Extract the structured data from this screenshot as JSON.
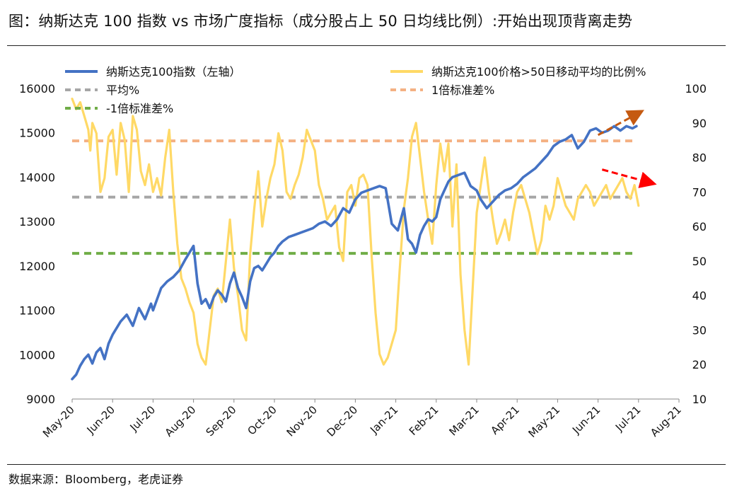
{
  "title": "图：纳斯达克 100 指数 vs  市场广度指标（成分股占上 50 日均线比例）:开始出现顶背离走势",
  "source": "数据来源：Bloomberg，老虎证券",
  "colors": {
    "ndx": "#4472C4",
    "breadth": "#FFD966",
    "mean": "#A6A6A6",
    "plus_std": "#F4B183",
    "minus_std": "#70AD47",
    "arrow_up": "#C55A11",
    "arrow_down": "#FF0000"
  },
  "chart_data": {
    "type": "line",
    "x_ticks": [
      "May-20",
      "Jun-20",
      "Jul-20",
      "Aug-20",
      "Sep-20",
      "Oct-20",
      "Nov-20",
      "Dec-20",
      "Jan-21",
      "Feb-21",
      "Mar-21",
      "Apr-21",
      "May-21",
      "Jun-21",
      "Jul-21",
      "Aug-21"
    ],
    "left_axis": {
      "ticks": [
        9000,
        10000,
        11000,
        12000,
        13000,
        14000,
        15000,
        16000
      ],
      "range": [
        9000,
        16000
      ]
    },
    "right_axis": {
      "ticks": [
        10,
        20,
        30,
        40,
        50,
        60,
        70,
        80,
        90,
        100
      ],
      "range": [
        10,
        100
      ]
    },
    "legend": [
      {
        "name": "纳斯达克100指数（左轴）",
        "key": "ndx"
      },
      {
        "name": "纳斯达克100价格>50日移动平均的比例%",
        "key": "breadth"
      },
      {
        "name": "平均%",
        "key": "mean"
      },
      {
        "name": "1倍标准差%",
        "key": "plus_std"
      },
      {
        "name": "-1倍标准差%",
        "key": "minus_std"
      }
    ],
    "reference_lines": {
      "mean": 68.5,
      "plus_std": 84.8,
      "minus_std": 52.2
    },
    "series": [
      {
        "name": "纳斯达克100指数（左轴）",
        "axis": "left",
        "x": [
          0,
          0.1,
          0.2,
          0.3,
          0.4,
          0.5,
          0.6,
          0.7,
          0.8,
          0.9,
          1.0,
          1.1,
          1.2,
          1.35,
          1.5,
          1.65,
          1.8,
          1.95,
          2.0,
          2.1,
          2.2,
          2.35,
          2.5,
          2.65,
          2.8,
          2.9,
          3.0,
          3.1,
          3.2,
          3.3,
          3.4,
          3.5,
          3.6,
          3.7,
          3.8,
          3.9,
          4.0,
          4.1,
          4.2,
          4.3,
          4.4,
          4.5,
          4.6,
          4.7,
          4.8,
          4.9,
          5.0,
          5.1,
          5.2,
          5.35,
          5.5,
          5.65,
          5.8,
          5.95,
          6.1,
          6.25,
          6.4,
          6.55,
          6.7,
          6.85,
          7.0,
          7.15,
          7.3,
          7.45,
          7.6,
          7.75,
          7.9,
          8.05,
          8.2,
          8.3,
          8.4,
          8.5,
          8.6,
          8.7,
          8.8,
          8.9,
          9.0,
          9.1,
          9.2,
          9.3,
          9.4,
          9.55,
          9.7,
          9.85,
          10.0,
          10.1,
          10.25,
          10.4,
          10.55,
          10.7,
          10.85,
          11.0,
          11.15,
          11.3,
          11.45,
          11.6,
          11.75,
          11.9,
          12.05,
          12.2,
          12.35,
          12.5,
          12.65,
          12.8,
          12.95,
          13.1,
          13.25,
          13.4,
          13.55,
          13.7,
          13.85,
          13.95
        ],
        "values": [
          9450,
          9550,
          9750,
          9900,
          10000,
          9800,
          10050,
          10150,
          9900,
          10250,
          10450,
          10600,
          10750,
          10900,
          10650,
          11050,
          10800,
          11150,
          11000,
          11250,
          11500,
          11650,
          11750,
          11900,
          12150,
          12300,
          12450,
          11600,
          11150,
          11250,
          11050,
          11300,
          11450,
          11350,
          11200,
          11600,
          11850,
          11500,
          11300,
          11050,
          11650,
          11950,
          12000,
          11900,
          12050,
          12200,
          12300,
          12450,
          12550,
          12650,
          12700,
          12750,
          12800,
          12850,
          12950,
          13000,
          12900,
          13050,
          13300,
          13200,
          13500,
          13650,
          13700,
          13750,
          13800,
          13750,
          12950,
          12800,
          13300,
          12600,
          12500,
          12300,
          12700,
          12900,
          13050,
          13000,
          13100,
          13500,
          13700,
          13900,
          14000,
          14050,
          14100,
          13800,
          13700,
          13500,
          13300,
          13450,
          13600,
          13700,
          13750,
          13850,
          14000,
          14100,
          14200,
          14350,
          14500,
          14700,
          14800,
          14850,
          14950,
          14650,
          14800,
          15050,
          15100,
          15000,
          15050,
          15150,
          15050,
          15150,
          15100,
          15150
        ],
        "values_note": ""
      },
      {
        "name": "纳斯达克100价格>50日移动平均的比例%",
        "axis": "right",
        "x": [
          0,
          0.1,
          0.2,
          0.3,
          0.4,
          0.45,
          0.5,
          0.6,
          0.7,
          0.8,
          0.9,
          1.0,
          1.1,
          1.2,
          1.3,
          1.4,
          1.5,
          1.6,
          1.7,
          1.8,
          1.9,
          2.0,
          2.1,
          2.2,
          2.3,
          2.4,
          2.5,
          2.6,
          2.7,
          2.8,
          2.9,
          3.0,
          3.1,
          3.2,
          3.3,
          3.4,
          3.5,
          3.6,
          3.7,
          3.8,
          3.9,
          4.0,
          4.1,
          4.2,
          4.3,
          4.4,
          4.5,
          4.6,
          4.7,
          4.8,
          4.9,
          5.0,
          5.1,
          5.2,
          5.3,
          5.4,
          5.5,
          5.6,
          5.7,
          5.8,
          5.9,
          6.0,
          6.1,
          6.2,
          6.3,
          6.4,
          6.5,
          6.6,
          6.7,
          6.8,
          6.9,
          7.0,
          7.1,
          7.2,
          7.3,
          7.4,
          7.5,
          7.6,
          7.7,
          7.8,
          7.9,
          8.0,
          8.1,
          8.2,
          8.3,
          8.4,
          8.5,
          8.6,
          8.7,
          8.8,
          8.9,
          9.0,
          9.1,
          9.2,
          9.3,
          9.4,
          9.5,
          9.6,
          9.7,
          9.8,
          9.9,
          10.0,
          10.1,
          10.2,
          10.3,
          10.4,
          10.5,
          10.6,
          10.7,
          10.8,
          10.9,
          11.0,
          11.1,
          11.2,
          11.3,
          11.4,
          11.5,
          11.6,
          11.7,
          11.8,
          11.9,
          12.0,
          12.1,
          12.2,
          12.3,
          12.4,
          12.5,
          12.6,
          12.7,
          12.8,
          12.9,
          13.0,
          13.1,
          13.2,
          13.3,
          13.4,
          13.5,
          13.6,
          13.7,
          13.8,
          13.9,
          14.0
        ],
        "values": [
          97,
          94,
          96,
          92,
          88,
          82,
          90,
          87,
          70,
          74,
          86,
          88,
          75,
          90,
          85,
          70,
          92,
          88,
          76,
          72,
          78,
          70,
          74,
          69,
          80,
          88,
          70,
          55,
          45,
          42,
          38,
          35,
          26,
          22,
          20,
          30,
          40,
          42,
          38,
          50,
          62,
          48,
          40,
          30,
          27,
          52,
          65,
          76,
          60,
          68,
          74,
          78,
          87,
          82,
          70,
          68,
          72,
          75,
          80,
          88,
          85,
          82,
          72,
          68,
          62,
          64,
          66,
          54,
          50,
          70,
          72,
          66,
          74,
          75,
          72,
          52,
          35,
          23,
          20,
          22,
          26,
          30,
          48,
          65,
          74,
          86,
          90,
          80,
          70,
          62,
          55,
          72,
          84,
          76,
          84,
          60,
          78,
          46,
          30,
          20,
          42,
          64,
          72,
          80,
          70,
          62,
          55,
          58,
          62,
          56,
          64,
          70,
          72,
          68,
          64,
          58,
          52,
          56,
          66,
          62,
          66,
          74,
          70,
          66,
          64,
          62,
          68,
          70,
          72,
          70,
          66,
          68,
          70,
          72,
          68,
          70,
          72,
          74,
          70,
          68,
          72,
          66
        ],
        "values_note": ""
      }
    ]
  }
}
